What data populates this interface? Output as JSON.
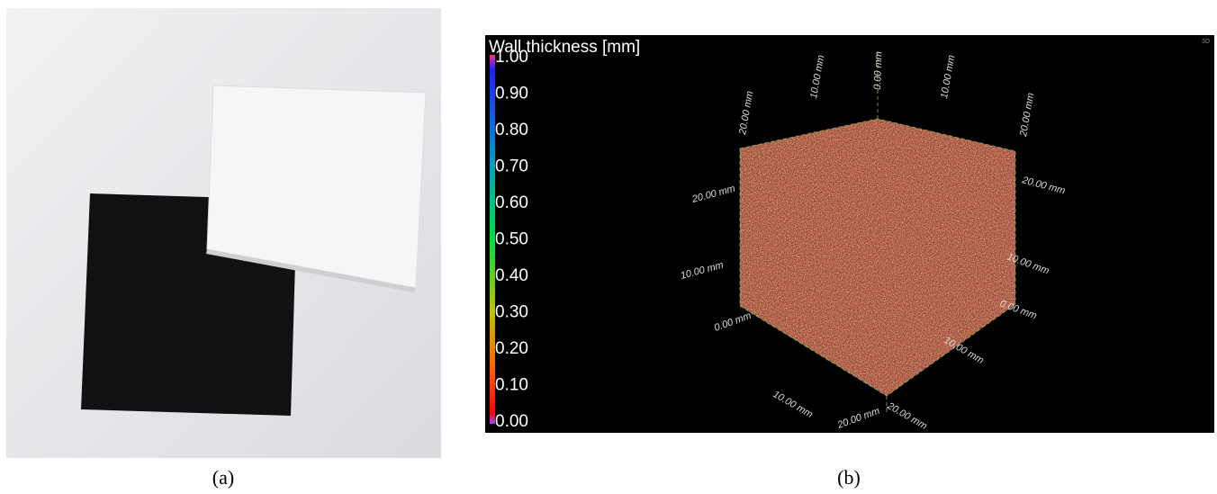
{
  "panels": [
    {
      "label": "(a)"
    },
    {
      "label": "(b)",
      "colorbar": {
        "title": "Wall thickness [mm]",
        "ticks": [
          "1.00",
          "0.90",
          "0.80",
          "0.70",
          "0.60",
          "0.50",
          "0.40",
          "0.30",
          "0.20",
          "0.10",
          "0.00"
        ]
      },
      "view_label": "3D",
      "axis_labels": [
        "0.00 mm",
        "10.00 mm",
        "20.00 mm",
        "10.00 mm",
        "20.00 mm",
        "20.00 mm",
        "10.00 mm",
        "0.00 mm",
        "20.00 mm",
        "10.00 mm",
        "0.00 mm",
        "10.00 mm",
        "20.00 mm",
        "20.00 mm",
        "10.00 mm"
      ]
    }
  ]
}
